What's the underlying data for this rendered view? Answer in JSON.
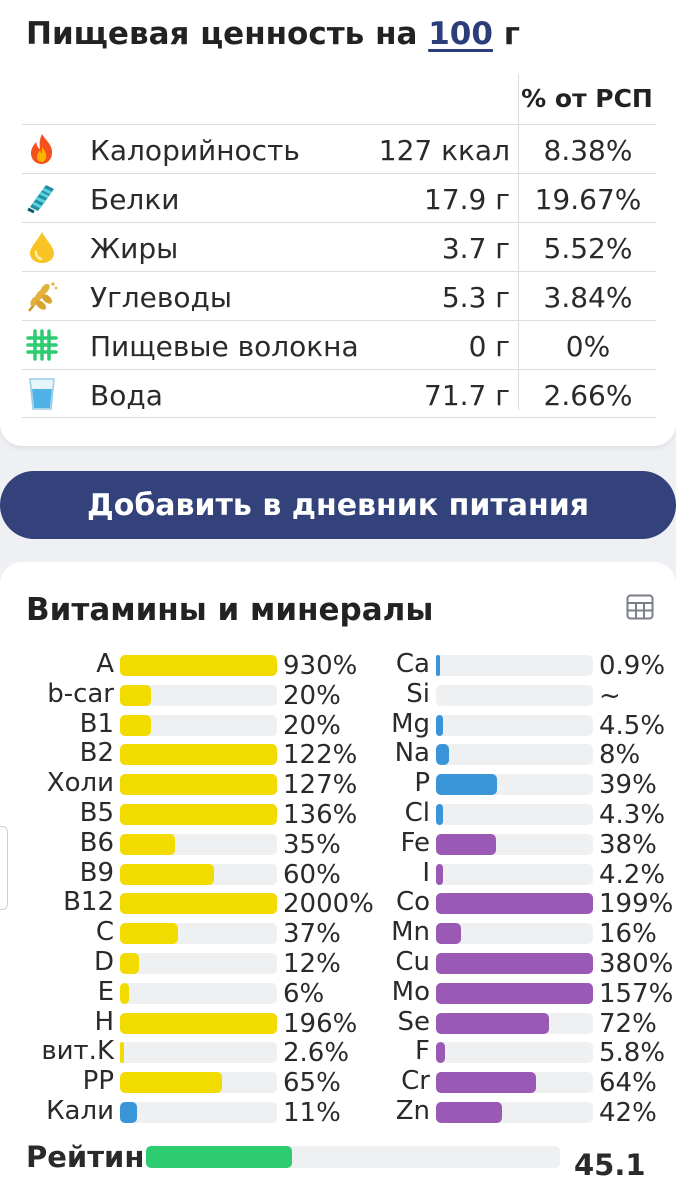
{
  "nutrition": {
    "title_prefix": "Пищевая ценность на ",
    "amount": "100",
    "title_suffix": " г",
    "pct_header": "% от РСП",
    "rows": [
      {
        "icon": "fire-icon",
        "label": "Калорийность",
        "value": "127 ккал",
        "pct": "8.38%"
      },
      {
        "icon": "protein-icon",
        "label": "Белки",
        "value": "17.9 г",
        "pct": "19.67%"
      },
      {
        "icon": "oil-drop-icon",
        "label": "Жиры",
        "value": "3.7 г",
        "pct": "5.52%"
      },
      {
        "icon": "wheat-icon",
        "label": "Углеводы",
        "value": "5.3 г",
        "pct": "3.84%"
      },
      {
        "icon": "fiber-grid-icon",
        "label": "Пищевые волокна",
        "value": "0 г",
        "pct": "0%"
      },
      {
        "icon": "water-glass-icon",
        "label": "Вода",
        "value": "71.7 г",
        "pct": "2.66%"
      }
    ]
  },
  "add_button": "Добавить в дневник питания",
  "vitamins": {
    "title": "Витамины и минералы",
    "table_icon": "table-view-icon",
    "colors": {
      "vitamin": "#f2dc00",
      "electrolyte": "#3a95d8",
      "trace_mineral": "#9b59b6",
      "track": "#eef0f2",
      "rating": "#2ecc71"
    },
    "left": [
      {
        "label": "A",
        "pct": "930%",
        "fill": 1.0,
        "color": "#f2dc00"
      },
      {
        "label": "b-car",
        "pct": "20%",
        "fill": 0.2,
        "color": "#f2dc00"
      },
      {
        "label": "B1",
        "pct": "20%",
        "fill": 0.2,
        "color": "#f2dc00"
      },
      {
        "label": "B2",
        "pct": "122%",
        "fill": 1.0,
        "color": "#f2dc00"
      },
      {
        "label": "Холи",
        "pct": "127%",
        "fill": 1.0,
        "color": "#f2dc00"
      },
      {
        "label": "B5",
        "pct": "136%",
        "fill": 1.0,
        "color": "#f2dc00"
      },
      {
        "label": "B6",
        "pct": "35%",
        "fill": 0.35,
        "color": "#f2dc00"
      },
      {
        "label": "B9",
        "pct": "60%",
        "fill": 0.6,
        "color": "#f2dc00"
      },
      {
        "label": "B12",
        "pct": "2000%",
        "fill": 1.0,
        "color": "#f2dc00"
      },
      {
        "label": "C",
        "pct": "37%",
        "fill": 0.37,
        "color": "#f2dc00"
      },
      {
        "label": "D",
        "pct": "12%",
        "fill": 0.12,
        "color": "#f2dc00"
      },
      {
        "label": "E",
        "pct": "6%",
        "fill": 0.06,
        "color": "#f2dc00"
      },
      {
        "label": "H",
        "pct": "196%",
        "fill": 1.0,
        "color": "#f2dc00"
      },
      {
        "label": "вит.K",
        "pct": "2.6%",
        "fill": 0.026,
        "color": "#f2dc00"
      },
      {
        "label": "PP",
        "pct": "65%",
        "fill": 0.65,
        "color": "#f2dc00"
      },
      {
        "label": "Кали",
        "pct": "11%",
        "fill": 0.11,
        "color": "#3a95d8"
      }
    ],
    "right": [
      {
        "label": "Ca",
        "pct": "0.9%",
        "fill": 0.009,
        "color": "#3a95d8"
      },
      {
        "label": "Si",
        "pct": "~",
        "fill": 0,
        "color": "#3a95d8"
      },
      {
        "label": "Mg",
        "pct": "4.5%",
        "fill": 0.045,
        "color": "#3a95d8"
      },
      {
        "label": "Na",
        "pct": "8%",
        "fill": 0.08,
        "color": "#3a95d8"
      },
      {
        "label": "P",
        "pct": "39%",
        "fill": 0.39,
        "color": "#3a95d8"
      },
      {
        "label": "Cl",
        "pct": "4.3%",
        "fill": 0.043,
        "color": "#3a95d8"
      },
      {
        "label": "Fe",
        "pct": "38%",
        "fill": 0.38,
        "color": "#9b59b6"
      },
      {
        "label": "I",
        "pct": "4.2%",
        "fill": 0.042,
        "color": "#9b59b6"
      },
      {
        "label": "Co",
        "pct": "199%",
        "fill": 1.0,
        "color": "#9b59b6"
      },
      {
        "label": "Mn",
        "pct": "16%",
        "fill": 0.16,
        "color": "#9b59b6"
      },
      {
        "label": "Cu",
        "pct": "380%",
        "fill": 1.0,
        "color": "#9b59b6"
      },
      {
        "label": "Mo",
        "pct": "157%",
        "fill": 1.0,
        "color": "#9b59b6"
      },
      {
        "label": "Se",
        "pct": "72%",
        "fill": 0.72,
        "color": "#9b59b6"
      },
      {
        "label": "F",
        "pct": "5.8%",
        "fill": 0.058,
        "color": "#9b59b6"
      },
      {
        "label": "Cr",
        "pct": "64%",
        "fill": 0.64,
        "color": "#9b59b6"
      },
      {
        "label": "Zn",
        "pct": "42%",
        "fill": 0.42,
        "color": "#9b59b6"
      }
    ]
  },
  "rating": {
    "label": "Рейтинг",
    "value": "45.1",
    "fill": 0.451
  }
}
